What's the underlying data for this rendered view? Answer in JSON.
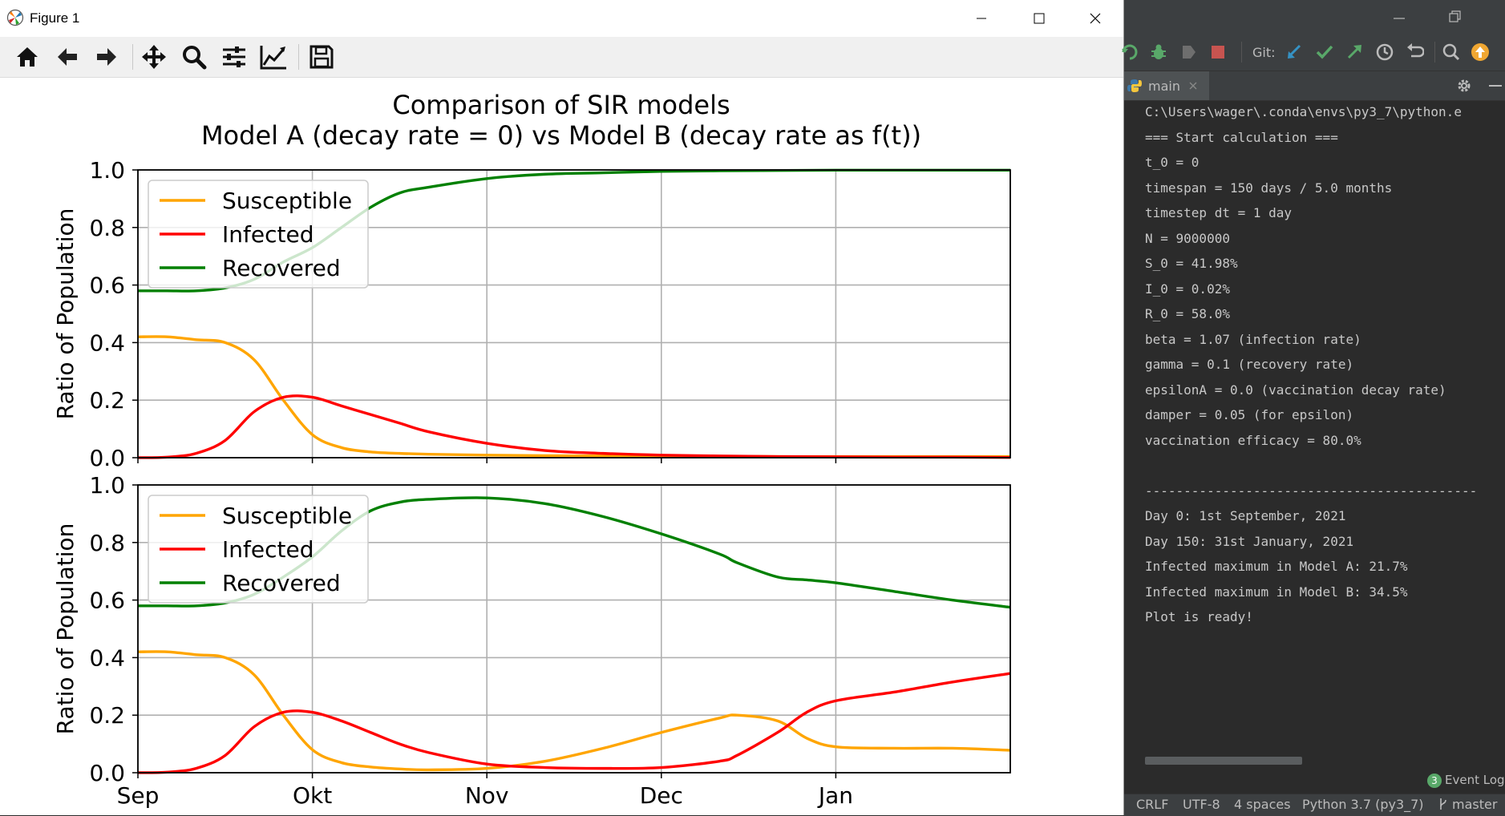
{
  "window": {
    "title": "Figure 1"
  },
  "toolbar": {
    "buttons": [
      "home-icon",
      "back-arrow-icon",
      "forward-arrow-icon",
      "pan-icon",
      "zoom-icon",
      "subplots-icon",
      "axes-edit-icon",
      "save-icon"
    ]
  },
  "figure": {
    "title_line1": "Comparison of SIR models",
    "title_line2": "Model A (decay rate = 0) vs Model B (decay rate as f(t))"
  },
  "colors": {
    "susceptible": "#ffa500",
    "infected": "#ff0000",
    "recovered": "#008000"
  },
  "chart_data": [
    {
      "type": "line",
      "title": "",
      "xlabel": "",
      "ylabel": "Ratio of Population",
      "ylim": [
        0,
        1.0
      ],
      "xlim": [
        0,
        150
      ],
      "yticks": [
        "0.0",
        "0.2",
        "0.4",
        "0.6",
        "0.8",
        "1.0"
      ],
      "grid": true,
      "legend": "top-left",
      "x": [
        0,
        5,
        10,
        15,
        20,
        25,
        30,
        35,
        40,
        45,
        50,
        60,
        70,
        80,
        90,
        100,
        110,
        120,
        130,
        140,
        150
      ],
      "series": [
        {
          "name": "Susceptible",
          "color": "#ffa500",
          "values": [
            0.42,
            0.42,
            0.41,
            0.4,
            0.34,
            0.2,
            0.08,
            0.035,
            0.02,
            0.015,
            0.012,
            0.009,
            0.007,
            0.006,
            0.005,
            0.005,
            0.004,
            0.004,
            0.004,
            0.004,
            0.004
          ]
        },
        {
          "name": "Infected",
          "color": "#ff0000",
          "values": [
            0.0002,
            0.002,
            0.015,
            0.06,
            0.16,
            0.21,
            0.21,
            0.18,
            0.15,
            0.12,
            0.09,
            0.05,
            0.025,
            0.015,
            0.009,
            0.006,
            0.004,
            0.003,
            0.002,
            0.002,
            0.001
          ]
        },
        {
          "name": "Recovered",
          "color": "#008000",
          "values": [
            0.58,
            0.58,
            0.58,
            0.59,
            0.62,
            0.68,
            0.73,
            0.8,
            0.87,
            0.92,
            0.94,
            0.97,
            0.985,
            0.99,
            0.995,
            0.997,
            0.998,
            0.999,
            0.999,
            0.999,
            0.999
          ]
        }
      ]
    },
    {
      "type": "line",
      "title": "",
      "xlabel": "",
      "ylabel": "Ratio of Population",
      "ylim": [
        0,
        1.0
      ],
      "xlim": [
        0,
        150
      ],
      "yticks": [
        "0.0",
        "0.2",
        "0.4",
        "0.6",
        "0.8",
        "1.0"
      ],
      "xticks": [
        {
          "x": 0,
          "label": "Sep"
        },
        {
          "x": 30,
          "label": "Okt"
        },
        {
          "x": 60,
          "label": "Nov"
        },
        {
          "x": 90,
          "label": "Dec"
        },
        {
          "x": 120,
          "label": "Jan"
        }
      ],
      "grid": true,
      "legend": "top-left",
      "x": [
        0,
        5,
        10,
        15,
        20,
        25,
        30,
        35,
        40,
        45,
        50,
        60,
        70,
        80,
        90,
        100,
        103,
        110,
        115,
        120,
        130,
        140,
        150
      ],
      "series": [
        {
          "name": "Susceptible",
          "color": "#ffa500",
          "values": [
            0.42,
            0.42,
            0.41,
            0.4,
            0.34,
            0.2,
            0.08,
            0.035,
            0.02,
            0.013,
            0.01,
            0.015,
            0.04,
            0.085,
            0.14,
            0.19,
            0.2,
            0.18,
            0.12,
            0.09,
            0.085,
            0.085,
            0.078
          ]
        },
        {
          "name": "Infected",
          "color": "#ff0000",
          "values": [
            0.0002,
            0.002,
            0.015,
            0.06,
            0.16,
            0.21,
            0.21,
            0.18,
            0.14,
            0.1,
            0.07,
            0.03,
            0.018,
            0.015,
            0.018,
            0.04,
            0.06,
            0.14,
            0.21,
            0.25,
            0.28,
            0.315,
            0.345
          ]
        },
        {
          "name": "Recovered",
          "color": "#008000",
          "values": [
            0.58,
            0.58,
            0.58,
            0.59,
            0.62,
            0.68,
            0.75,
            0.84,
            0.91,
            0.94,
            0.95,
            0.955,
            0.935,
            0.89,
            0.83,
            0.76,
            0.73,
            0.68,
            0.67,
            0.66,
            0.63,
            0.6,
            0.575
          ]
        }
      ]
    }
  ],
  "ide": {
    "git_label": "Git:",
    "run_tab_label": "main",
    "console_lines": [
      "C:\\Users\\wager\\.conda\\envs\\py3_7\\python.e",
      "=== Start calculation ===",
      "t_0 = 0",
      "timespan = 150 days / 5.0 months",
      "timestep dt = 1 day",
      "N = 9000000",
      "S_0 = 41.98%",
      "I_0 = 0.02%",
      "R_0 = 58.0%",
      "beta = 1.07 (infection rate)",
      "gamma = 0.1 (recovery rate)",
      "epsilonA = 0.0 (vaccination decay rate)",
      "damper = 0.05 (for epsilon)",
      "vaccination efficacy = 80.0%",
      "",
      "-------------------------------------------",
      "Day 0: 1st September, 2021",
      "Day 150: 31st January, 2021",
      "Infected maximum in Model A: 21.7%",
      "Infected maximum in Model B: 34.5%",
      "Plot is ready!"
    ],
    "event_log": {
      "count": "3",
      "label": "Event Log"
    },
    "status": {
      "line_sep": "CRLF",
      "encoding": "UTF-8",
      "indent": "4 spaces",
      "interpreter": "Python 3.7 (py3_7)",
      "branch": "master"
    }
  }
}
